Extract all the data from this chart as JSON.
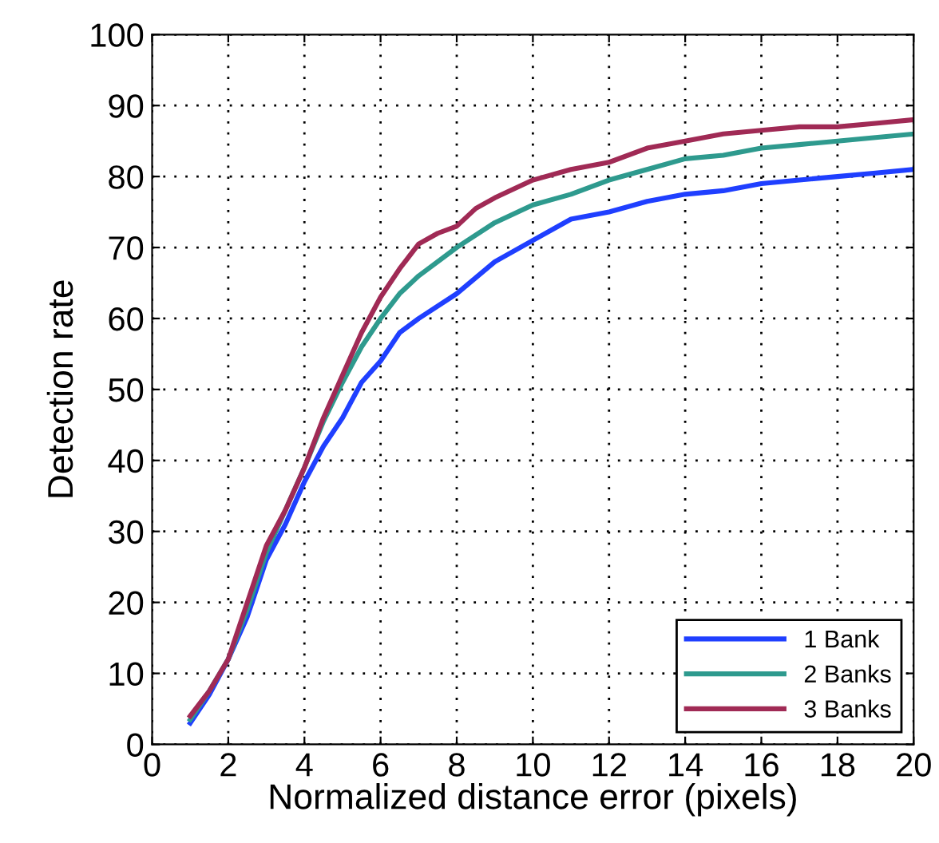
{
  "chart_data": {
    "type": "line",
    "xlabel": "Normalized distance error (pixels)",
    "ylabel": "Detection rate",
    "xlim": [
      0,
      20
    ],
    "ylim": [
      0,
      100
    ],
    "xticks": [
      0,
      2,
      4,
      6,
      8,
      10,
      12,
      14,
      16,
      18,
      20
    ],
    "yticks": [
      0,
      10,
      20,
      30,
      40,
      50,
      60,
      70,
      80,
      90,
      100
    ],
    "grid": true,
    "legend": "bottom right",
    "line_style": "solid",
    "marker": "none",
    "series": [
      {
        "name": "1 Bank",
        "color": "#1f3fff",
        "x": [
          1,
          1.5,
          2,
          2.5,
          3,
          3.5,
          4,
          4.5,
          5,
          5.5,
          6,
          6.5,
          7,
          8,
          9,
          10,
          11,
          12,
          13,
          14,
          15,
          16,
          17,
          18,
          19,
          20
        ],
        "values": [
          3,
          7,
          12,
          18,
          26,
          31,
          37,
          42,
          46,
          51,
          54,
          58,
          60,
          63.5,
          68,
          71,
          74,
          75,
          76.5,
          77.5,
          78,
          79,
          79.5,
          80,
          80.5,
          81
        ]
      },
      {
        "name": "2 Banks",
        "color": "#2e9a8e",
        "x": [
          1,
          1.5,
          2,
          2.5,
          3,
          3.5,
          4,
          4.5,
          5,
          5.5,
          6,
          6.5,
          7,
          8,
          9,
          10,
          11,
          12,
          13,
          14,
          15,
          16,
          17,
          18,
          19,
          20
        ],
        "values": [
          3.5,
          7.5,
          12,
          19,
          27,
          33,
          39,
          45.5,
          51,
          56,
          60,
          63.5,
          66,
          70,
          73.5,
          76,
          77.5,
          79.5,
          81,
          82.5,
          83,
          84,
          84.5,
          85,
          85.5,
          86
        ]
      },
      {
        "name": "3 Banks",
        "color": "#a02a55",
        "x": [
          1,
          1.5,
          2,
          2.5,
          3,
          3.5,
          4,
          4.5,
          5,
          5.5,
          6,
          6.5,
          7,
          7.5,
          8,
          8.5,
          9,
          10,
          11,
          12,
          13,
          14,
          15,
          16,
          17,
          18,
          19,
          20
        ],
        "values": [
          4,
          7.5,
          12,
          20,
          28,
          33,
          39,
          46,
          52,
          58,
          63,
          67,
          70.5,
          72,
          73,
          75.5,
          77,
          79.5,
          81,
          82,
          84,
          85,
          86,
          86.5,
          87,
          87,
          87.5,
          88
        ]
      }
    ]
  }
}
